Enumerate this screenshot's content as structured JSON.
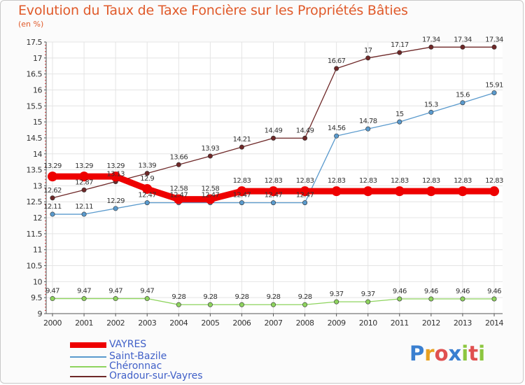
{
  "title": "Evolution du Taux de Taxe Foncière sur les Propriétés Bâties",
  "unit": "(en %)",
  "logo": {
    "letters": [
      "P",
      "r",
      "o",
      "x",
      "i",
      "t",
      "i"
    ],
    "colors": [
      "#3a7fd0",
      "#e8a020",
      "#e05050",
      "#3a7fd0",
      "#8cc63f",
      "#e05050",
      "#8cc63f"
    ]
  },
  "chart_data": {
    "type": "line",
    "title": "Evolution du Taux de Taxe Foncière sur les Propriétés Bâties",
    "ylabel": "(en %)",
    "xlabel": "",
    "ylim": [
      9,
      17.5
    ],
    "yticks": [
      "9",
      "9.5",
      "10",
      "10.5",
      "11",
      "11.5",
      "12",
      "12.5",
      "13",
      "13.5",
      "14",
      "14.5",
      "15",
      "15.5",
      "16",
      "16.5",
      "17",
      "17.5"
    ],
    "categories": [
      "2000",
      "2001",
      "2002",
      "2003",
      "2004",
      "2005",
      "2006",
      "2007",
      "2008",
      "2009",
      "2010",
      "2011",
      "2012",
      "2013",
      "2014"
    ],
    "series": [
      {
        "name": "VAYRES",
        "color": "#ee0000",
        "values": [
          13.29,
          13.29,
          13.29,
          12.9,
          12.58,
          12.58,
          12.83,
          12.83,
          12.83,
          12.83,
          12.83,
          12.83,
          12.83,
          12.83,
          12.83
        ]
      },
      {
        "name": "Saint-Bazile",
        "color": "#5a9acd",
        "values": [
          12.11,
          12.11,
          12.29,
          12.47,
          12.47,
          12.47,
          12.47,
          12.47,
          12.47,
          14.56,
          14.78,
          15,
          15.3,
          15.6,
          15.91
        ]
      },
      {
        "name": "Chéronnac",
        "color": "#8ed45e",
        "values": [
          9.47,
          9.47,
          9.47,
          9.47,
          9.28,
          9.28,
          9.28,
          9.28,
          9.28,
          9.37,
          9.37,
          9.46,
          9.46,
          9.46,
          9.46
        ]
      },
      {
        "name": "Oradour-sur-Vayres",
        "color": "#6e2828",
        "values": [
          12.62,
          12.87,
          13.13,
          13.39,
          13.66,
          13.93,
          14.21,
          14.49,
          14.49,
          16.67,
          17,
          17.17,
          17.34,
          17.34,
          17.34
        ]
      }
    ],
    "point_labels": [
      [
        "13.29",
        "13.29",
        "13.29",
        "12.9",
        "12.58",
        "12.58",
        "12.83",
        "12.83",
        "12.83",
        "12.83",
        "12.83",
        "12.83",
        "12.83",
        "12.83",
        "12.83"
      ],
      [
        "12.11",
        "12.11",
        "12.29",
        "12.47",
        "12.47",
        "12.47",
        "12.47",
        "12.47",
        "12.47",
        "14.56",
        "14.78",
        "15",
        "15.3",
        "15.6",
        "15.91"
      ],
      [
        "9.47",
        "9.47",
        "9.47",
        "9.47",
        "9.28",
        "9.28",
        "9.28",
        "9.28",
        "9.28",
        "9.37",
        "9.37",
        "9.46",
        "9.46",
        "9.46",
        "9.46"
      ],
      [
        "12.62",
        "12.87",
        "13.13",
        "13.39",
        "13.66",
        "13.93",
        "14.21",
        "14.49",
        "14.49",
        "16.67",
        "17",
        "17.17",
        "17.34",
        "17.34",
        "17.34"
      ]
    ],
    "grid": true,
    "legend_position": "bottom-left"
  }
}
